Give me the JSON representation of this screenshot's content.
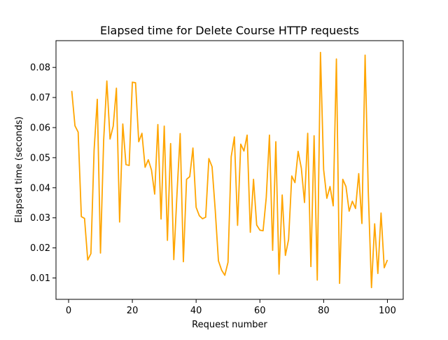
{
  "chart_data": {
    "type": "line",
    "title": "Elapsed time for Delete Course HTTP requests",
    "xlabel": "Request number",
    "ylabel": "Elapsed time (seconds)",
    "xlim": [
      -3.95,
      104.95
    ],
    "ylim": [
      0.0029,
      0.0889
    ],
    "xticks": [
      0,
      20,
      40,
      60,
      80,
      100
    ],
    "yticks": [
      0.01,
      0.02,
      0.03,
      0.04,
      0.05,
      0.06,
      0.07,
      0.08
    ],
    "ytick_labels": [
      "0.01",
      "0.02",
      "0.03",
      "0.04",
      "0.05",
      "0.06",
      "0.07",
      "0.08"
    ],
    "grid": false,
    "legend": "none",
    "series": [
      {
        "color": "#FFA500",
        "x": [
          1,
          2,
          3,
          4,
          5,
          6,
          7,
          8,
          9,
          10,
          11,
          12,
          13,
          14,
          15,
          16,
          17,
          18,
          19,
          20,
          21,
          22,
          23,
          24,
          25,
          26,
          27,
          28,
          29,
          30,
          31,
          32,
          33,
          34,
          35,
          36,
          37,
          38,
          39,
          40,
          41,
          42,
          43,
          44,
          45,
          46,
          47,
          48,
          49,
          50,
          51,
          52,
          53,
          54,
          55,
          56,
          57,
          58,
          59,
          60,
          61,
          62,
          63,
          64,
          65,
          66,
          67,
          68,
          69,
          70,
          71,
          72,
          73,
          74,
          75,
          76,
          77,
          78,
          79,
          80,
          81,
          82,
          83,
          84,
          85,
          86,
          87,
          88,
          89,
          90,
          91,
          92,
          93,
          94,
          95,
          96,
          97,
          98,
          99,
          100
        ],
        "values": [
          0.0722,
          0.0606,
          0.0585,
          0.0304,
          0.0298,
          0.016,
          0.0181,
          0.0525,
          0.0694,
          0.0183,
          0.0558,
          0.0755,
          0.0562,
          0.0605,
          0.0731,
          0.0286,
          0.0612,
          0.0477,
          0.0474,
          0.0751,
          0.0749,
          0.0553,
          0.0581,
          0.0468,
          0.0493,
          0.0459,
          0.0379,
          0.061,
          0.0296,
          0.0605,
          0.0225,
          0.0547,
          0.0161,
          0.038,
          0.058,
          0.0154,
          0.0428,
          0.0437,
          0.0532,
          0.0335,
          0.0307,
          0.0297,
          0.0302,
          0.0497,
          0.047,
          0.0325,
          0.0157,
          0.0126,
          0.0109,
          0.0152,
          0.0503,
          0.0569,
          0.0275,
          0.0545,
          0.0522,
          0.0575,
          0.0252,
          0.0428,
          0.0276,
          0.0259,
          0.0257,
          0.0368,
          0.0575,
          0.0192,
          0.0553,
          0.0113,
          0.0376,
          0.0175,
          0.0228,
          0.0439,
          0.0417,
          0.0521,
          0.0465,
          0.0351,
          0.0581,
          0.0138,
          0.0573,
          0.0093,
          0.085,
          0.046,
          0.0365,
          0.0404,
          0.034,
          0.0828,
          0.0082,
          0.0428,
          0.0404,
          0.0322,
          0.0355,
          0.0331,
          0.0447,
          0.0281,
          0.0841,
          0.0386,
          0.0068,
          0.028,
          0.0115,
          0.0316,
          0.0134,
          0.016
        ]
      }
    ]
  }
}
